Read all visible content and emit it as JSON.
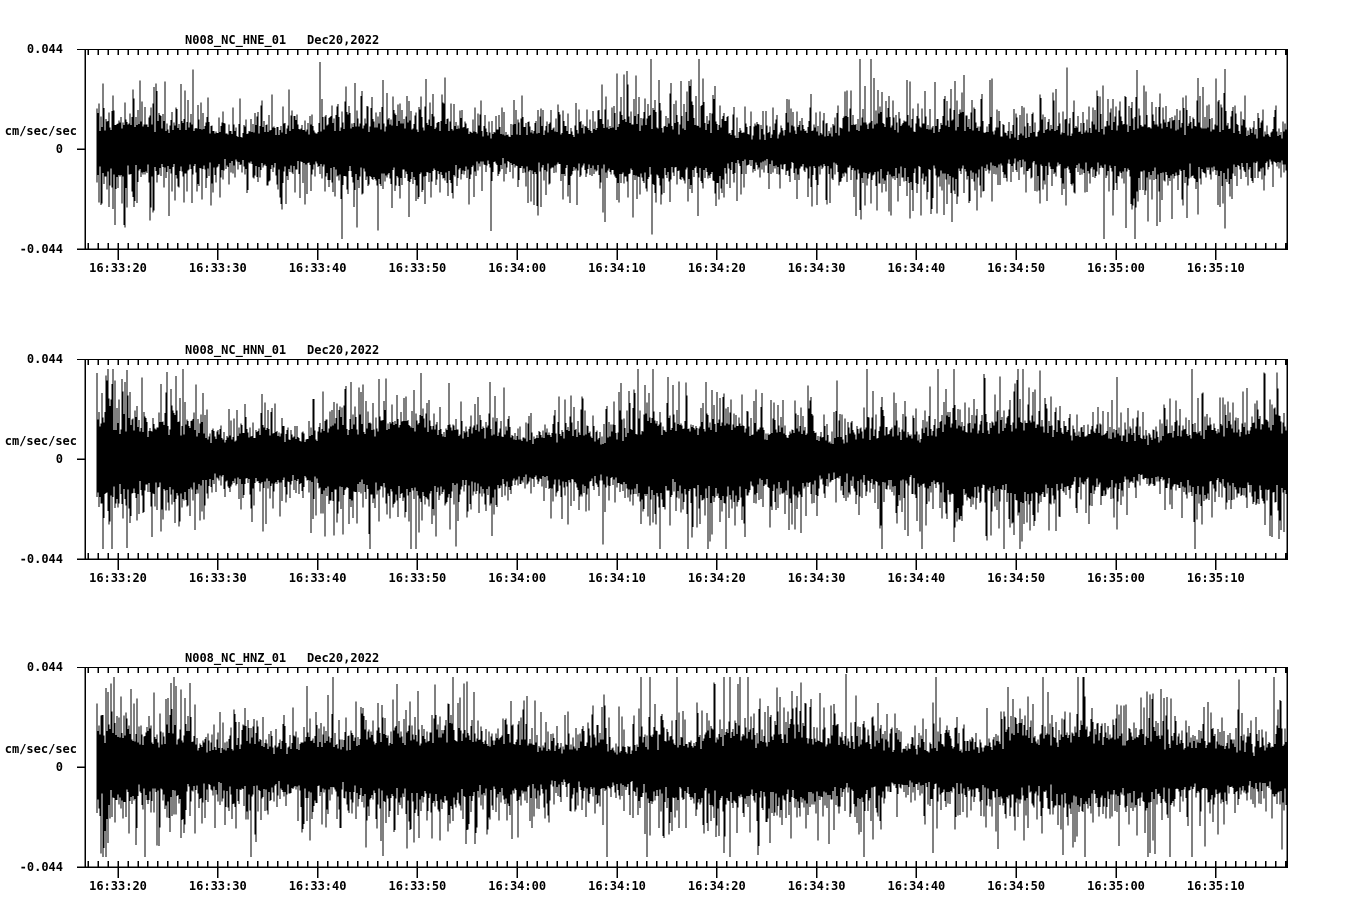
{
  "page": {
    "background_color": "#ffffff",
    "ink_color": "#000000",
    "description": "Three-channel strong-motion seismogram acceleration plot for station N008, network NC, Dec 20 2022"
  },
  "chart_data": [
    {
      "type": "line",
      "panel": "top",
      "title": "N008_NC_HNE_01",
      "date": "Dec20,2022",
      "ylabel": "cm/sec/sec",
      "ytick_labels": [
        "0.044",
        "0",
        "-0.044"
      ],
      "ytick_values": [
        0.044,
        0,
        -0.044
      ],
      "ylim": [
        -0.044,
        0.044
      ],
      "x_tick_labels": [
        "16:33:20",
        "16:33:30",
        "16:33:40",
        "16:33:50",
        "16:34:00",
        "16:34:10",
        "16:34:20",
        "16:34:30",
        "16:34:40",
        "16:34:50",
        "16:35:00",
        "16:35:10"
      ],
      "x_major_interval_sec": 10,
      "x_minor_interval_sec": 1,
      "time_span_sec": 120.4,
      "grid": false,
      "legend": "none",
      "noise": {
        "seed": 101,
        "core_base": 0.0055,
        "core_var": 0.003,
        "hair": 0.0058,
        "mod1": 41,
        "mod2": 13.7
      },
      "spikes": [
        {
          "t_after_first_label_sec": 37.4,
          "value": -0.036
        },
        {
          "t_after_first_label_sec": 110.9,
          "value": -0.035
        },
        {
          "t_after_first_label_sec": 87.6,
          "value": 0.031
        }
      ]
    },
    {
      "type": "line",
      "panel": "middle",
      "title": "N008_NC_HNN_01",
      "date": "Dec20,2022",
      "ylabel": "cm/sec/sec",
      "ytick_labels": [
        "0.044",
        "0",
        "-0.044"
      ],
      "ytick_values": [
        0.044,
        0,
        -0.044
      ],
      "ylim": [
        -0.044,
        0.044
      ],
      "x_tick_labels": [
        "16:33:20",
        "16:33:30",
        "16:33:40",
        "16:33:50",
        "16:34:00",
        "16:34:10",
        "16:34:20",
        "16:34:30",
        "16:34:40",
        "16:34:50",
        "16:35:00",
        "16:35:10"
      ],
      "x_major_interval_sec": 10,
      "x_minor_interval_sec": 1,
      "time_span_sec": 120.4,
      "grid": false,
      "legend": "none",
      "noise": {
        "seed": 202,
        "core_base": 0.008,
        "core_var": 0.004,
        "hair": 0.0062,
        "mod1": 47,
        "mod2": 12.3
      },
      "spikes": [
        {
          "t_after_first_label_sec": 72.0,
          "value": 0.0345
        },
        {
          "t_after_first_label_sec": 100.1,
          "value": 0.036
        },
        {
          "t_after_first_label_sec": 31.9,
          "value": -0.034
        },
        {
          "t_after_first_label_sec": 14.5,
          "value": -0.032
        }
      ]
    },
    {
      "type": "line",
      "panel": "bottom",
      "title": "N008_NC_HNZ_01",
      "date": "Dec20,2022",
      "ylabel": "cm/sec/sec",
      "ytick_labels": [
        "0.044",
        "0",
        "-0.044"
      ],
      "ytick_values": [
        0.044,
        0,
        -0.044
      ],
      "ylim": [
        -0.044,
        0.044
      ],
      "x_tick_labels": [
        "16:33:20",
        "16:33:30",
        "16:33:40",
        "16:33:50",
        "16:34:00",
        "16:34:10",
        "16:34:20",
        "16:34:30",
        "16:34:40",
        "16:34:50",
        "16:35:00",
        "16:35:10"
      ],
      "x_major_interval_sec": 10,
      "x_minor_interval_sec": 1,
      "time_span_sec": 120.4,
      "grid": false,
      "legend": "none",
      "noise": {
        "seed": 303,
        "core_base": 0.007,
        "core_var": 0.0038,
        "hair": 0.0065,
        "mod1": 53,
        "mod2": 11.1
      },
      "spikes": [
        {
          "t_after_first_label_sec": 72.9,
          "value": 0.041
        },
        {
          "t_after_first_label_sec": 88.2,
          "value": -0.036
        },
        {
          "t_after_first_label_sec": 13.8,
          "value": -0.033
        },
        {
          "t_after_first_label_sec": 48.7,
          "value": 0.032
        },
        {
          "t_after_first_label_sec": 103.6,
          "value": 0.03
        }
      ]
    }
  ]
}
